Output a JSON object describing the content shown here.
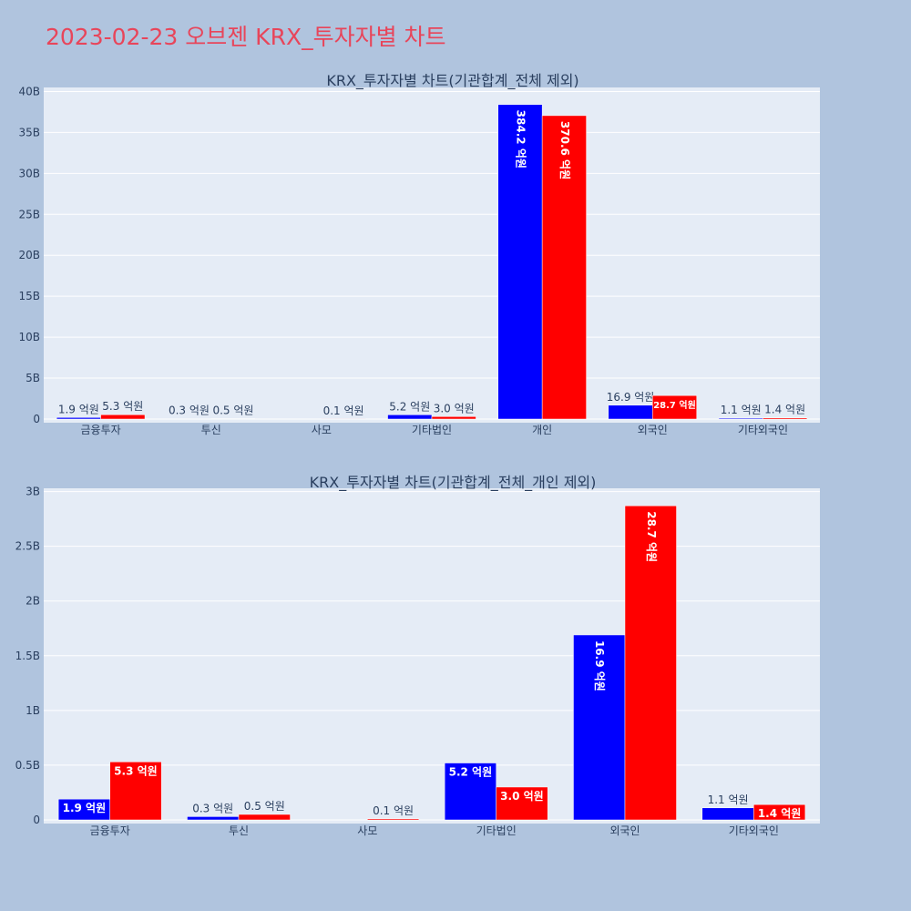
{
  "title": "2023-02-23 오브젠 KRX_투자자별 차트",
  "colors": {
    "background": "#b0c4de",
    "plot_background": "#e5ecf6",
    "title": "#e8455a",
    "text": "#2a3f5f",
    "series_buy": "#0000ff",
    "series_sell": "#ff0000",
    "grid": "#ffffff"
  },
  "chart_data": [
    {
      "type": "bar",
      "title": "KRX_투자자별 차트(기관합계_전체 제외)",
      "categories": [
        "금융투자",
        "투신",
        "사모",
        "기타법인",
        "개인",
        "외국인",
        "기타외국인"
      ],
      "series": [
        {
          "color": "#0000ff",
          "values": [
            190000000,
            30000000,
            0,
            520000000,
            38420000000,
            1690000000,
            110000000
          ],
          "labels": [
            "1.9 억원",
            "0.3 억원",
            "",
            "5.2 억원",
            "384.2 억원",
            "16.9 억원",
            "1.1 억원"
          ]
        },
        {
          "color": "#ff0000",
          "values": [
            530000000,
            50000000,
            10000000,
            300000000,
            37060000000,
            2870000000,
            140000000
          ],
          "labels": [
            "5.3 억원",
            "0.5 억원",
            "0.1 억원",
            "3.0 억원",
            "370.6 억원",
            "28.7 억원",
            "1.4 억원"
          ]
        }
      ],
      "yticks": [
        0,
        5000000000,
        10000000000,
        15000000000,
        20000000000,
        25000000000,
        30000000000,
        35000000000,
        40000000000
      ],
      "ytick_labels": [
        "0",
        "5B",
        "10B",
        "15B",
        "20B",
        "25B",
        "30B",
        "35B",
        "40B"
      ],
      "ylim": [
        0,
        40500000000
      ],
      "grid": true
    },
    {
      "type": "bar",
      "title": "KRX_투자자별 차트(기관합계_전체_개인 제외)",
      "categories": [
        "금융투자",
        "투신",
        "사모",
        "기타법인",
        "외국인",
        "기타외국인"
      ],
      "series": [
        {
          "color": "#0000ff",
          "values": [
            190000000,
            30000000,
            0,
            520000000,
            1690000000,
            110000000
          ],
          "labels": [
            "1.9 억원",
            "0.3 억원",
            "",
            "5.2 억원",
            "16.9 억원",
            "1.1 억원"
          ]
        },
        {
          "color": "#ff0000",
          "values": [
            530000000,
            50000000,
            10000000,
            300000000,
            2870000000,
            140000000
          ],
          "labels": [
            "5.3 억원",
            "0.5 억원",
            "0.1 억원",
            "3.0 억원",
            "28.7 억원",
            "1.4 억원"
          ]
        }
      ],
      "yticks": [
        0,
        500000000,
        1000000000,
        1500000000,
        2000000000,
        2500000000,
        3000000000
      ],
      "ytick_labels": [
        "0",
        "0.5B",
        "1B",
        "1.5B",
        "2B",
        "2.5B",
        "3B"
      ],
      "ylim": [
        0,
        3030000000
      ],
      "grid": true
    }
  ]
}
